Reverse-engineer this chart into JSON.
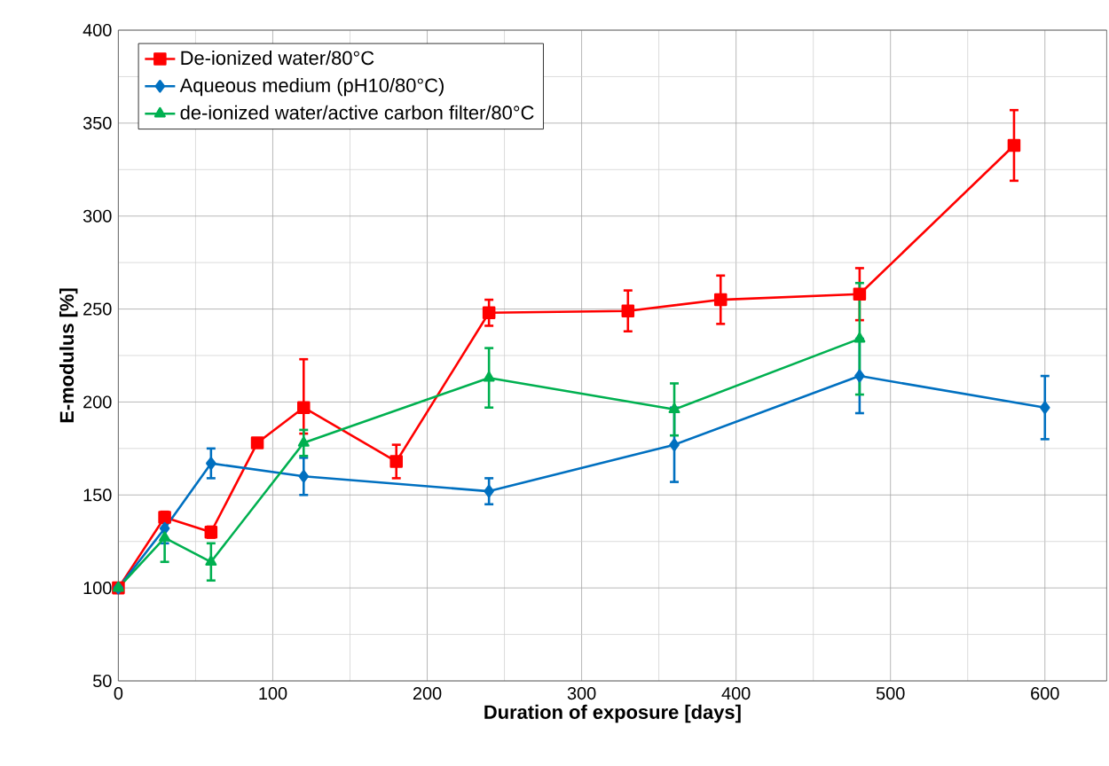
{
  "chart_data": {
    "type": "line",
    "xlabel": "Duration of exposure [days]",
    "ylabel": "E-modulus [%]",
    "xlim": [
      0,
      640
    ],
    "ylim": [
      50,
      400
    ],
    "xticks": [
      0,
      100,
      200,
      300,
      400,
      500,
      600
    ],
    "yticks": [
      50,
      100,
      150,
      200,
      250,
      300,
      350,
      400
    ],
    "grid": true,
    "legend": "top left",
    "line_style": "solid",
    "series": [
      {
        "name": "De-ionized water/80°C",
        "color": "#ff0000",
        "marker": "square",
        "x": [
          0,
          30,
          60,
          90,
          120,
          180,
          240,
          330,
          390,
          480,
          580
        ],
        "values": [
          100,
          138,
          130,
          178,
          197,
          168,
          248,
          249,
          255,
          258,
          338
        ],
        "errors": [
          null,
          3,
          3,
          null,
          [
            183,
            223
          ],
          9,
          7,
          11,
          13,
          14,
          19
        ]
      },
      {
        "name": "Aqueous medium (pH10/80°C)",
        "color": "#0070c0",
        "marker": "diamond",
        "x": [
          0,
          30,
          60,
          120,
          240,
          360,
          480,
          600
        ],
        "values": [
          100,
          132,
          167,
          160,
          152,
          177,
          214,
          197
        ],
        "errors": [
          null,
          8,
          8,
          10,
          7,
          20,
          20,
          17
        ]
      },
      {
        "name": "de-ionized water/active carbon filter/80°C",
        "color": "#00b050",
        "marker": "triangle",
        "x": [
          0,
          30,
          60,
          120,
          240,
          360,
          480
        ],
        "values": [
          100,
          127,
          114,
          178,
          213,
          196,
          234
        ],
        "errors": [
          null,
          13,
          10,
          7,
          16,
          14,
          30
        ]
      }
    ]
  }
}
